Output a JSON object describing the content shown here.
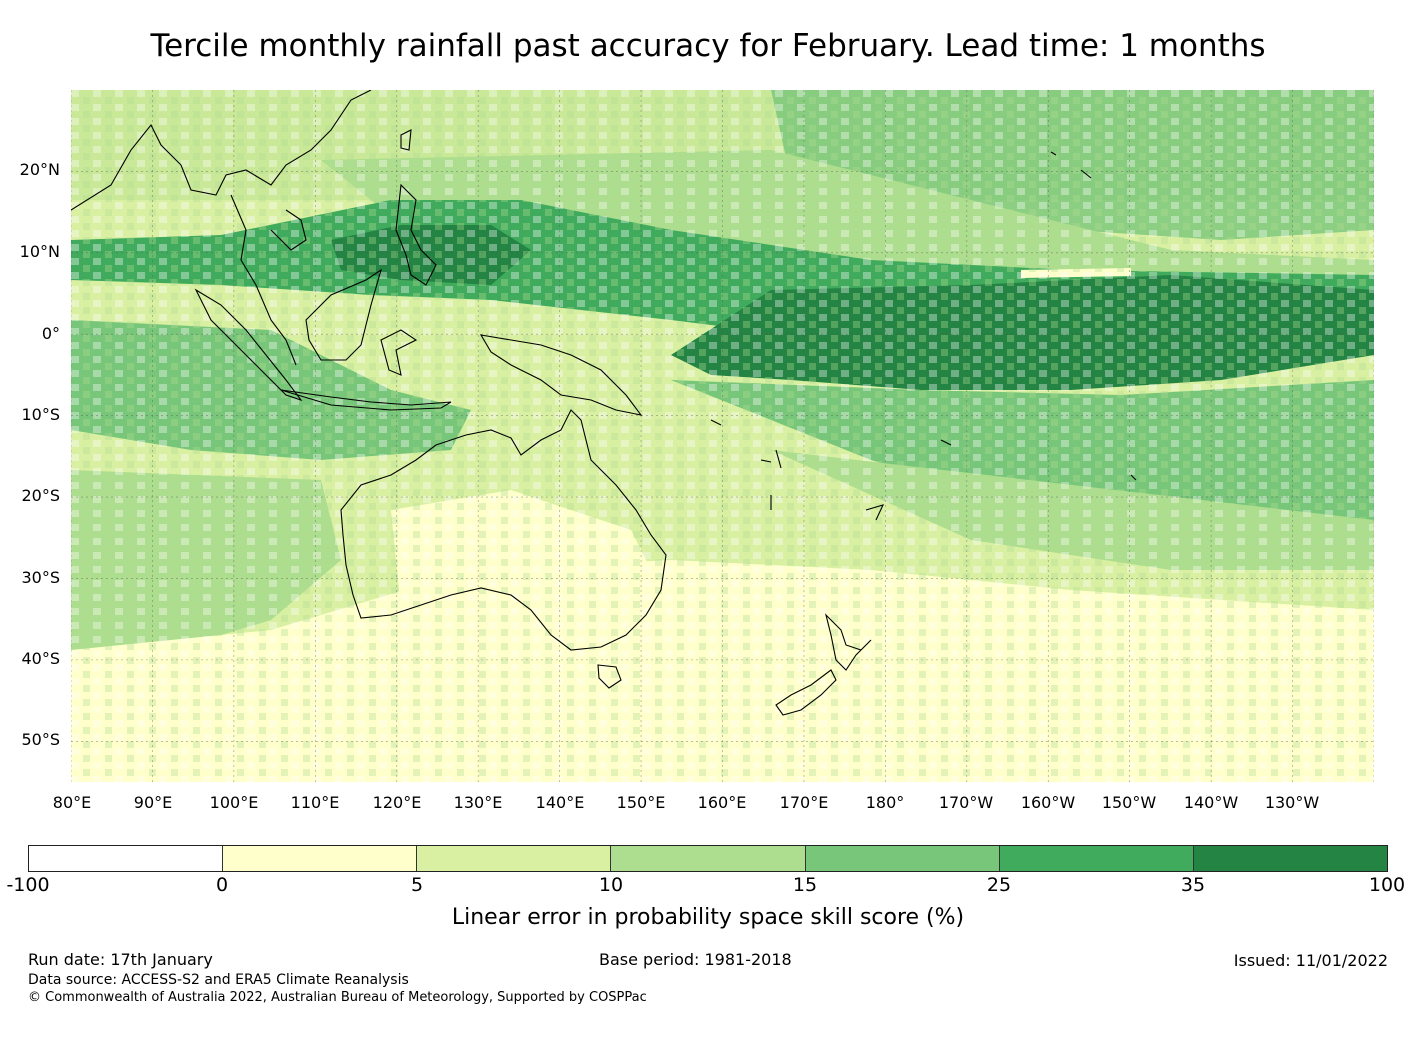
{
  "title": "Tercile monthly rainfall past accuracy for February. Lead time: 1 months",
  "map": {
    "projection": "plate-carree",
    "lon_range_deg": [
      80,
      240
    ],
    "lat_range_deg": [
      -55,
      30
    ],
    "latitude_labels": [
      "20°N",
      "10°N",
      "0°",
      "10°S",
      "20°S",
      "30°S",
      "40°S",
      "50°S"
    ],
    "longitude_labels": [
      "80°E",
      "90°E",
      "100°E",
      "110°E",
      "120°E",
      "130°E",
      "140°E",
      "150°E",
      "160°E",
      "170°E",
      "180°",
      "170°W",
      "160°W",
      "150°W",
      "140°W",
      "130°W"
    ],
    "gridlines": true,
    "coastlines": [
      "Asia",
      "Indonesia",
      "Philippines",
      "Papua New Guinea",
      "Australia",
      "Tasmania",
      "New Zealand",
      "Pacific islands"
    ]
  },
  "colorbar": {
    "label": "Linear error in probability space skill score (%)",
    "ticks": [
      "-100",
      "0",
      "5",
      "10",
      "15",
      "25",
      "35",
      "100"
    ],
    "colors": [
      "#ffffff",
      "#ffffcc",
      "#d9f0a3",
      "#addd8e",
      "#78c679",
      "#41ab5d",
      "#238443"
    ]
  },
  "footer": {
    "run_date": "Run date: 17th January",
    "base_period": "Base period: 1981-2018",
    "issued": "Issued: 11/01/2022",
    "data_source": "Data source: ACCESS-S2 and ERA5 Climate Reanalysis",
    "copyright": "© Commonwealth of Australia 2022, Australian Bureau of Meteorology, Supported by COSPPac"
  }
}
